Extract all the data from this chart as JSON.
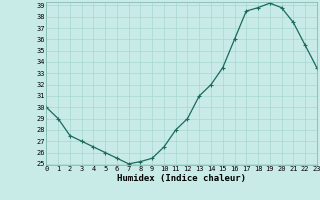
{
  "x": [
    0,
    1,
    2,
    3,
    4,
    5,
    6,
    7,
    8,
    9,
    10,
    11,
    12,
    13,
    14,
    15,
    16,
    17,
    18,
    19,
    20,
    21,
    22,
    23
  ],
  "y": [
    30,
    29,
    27.5,
    27,
    26.5,
    26,
    25.5,
    25,
    25.2,
    25.5,
    26.5,
    28,
    29,
    31,
    32,
    33.5,
    36,
    38.5,
    38.8,
    39.2,
    38.8,
    37.5,
    35.5,
    33.5
  ],
  "xlabel": "Humidex (Indice chaleur)",
  "ylim": [
    25,
    39
  ],
  "xlim": [
    0,
    23
  ],
  "yticks": [
    25,
    26,
    27,
    28,
    29,
    30,
    31,
    32,
    33,
    34,
    35,
    36,
    37,
    38,
    39
  ],
  "xticks": [
    0,
    1,
    2,
    3,
    4,
    5,
    6,
    7,
    8,
    9,
    10,
    11,
    12,
    13,
    14,
    15,
    16,
    17,
    18,
    19,
    20,
    21,
    22,
    23
  ],
  "line_color": "#1a6b5a",
  "marker_color": "#1a6b5a",
  "bg_color": "#c8ebe8",
  "grid_color": "#a8d8d0",
  "tick_fontsize": 5.0,
  "xlabel_fontsize": 6.5,
  "marker_size": 2.5,
  "line_width": 0.9
}
